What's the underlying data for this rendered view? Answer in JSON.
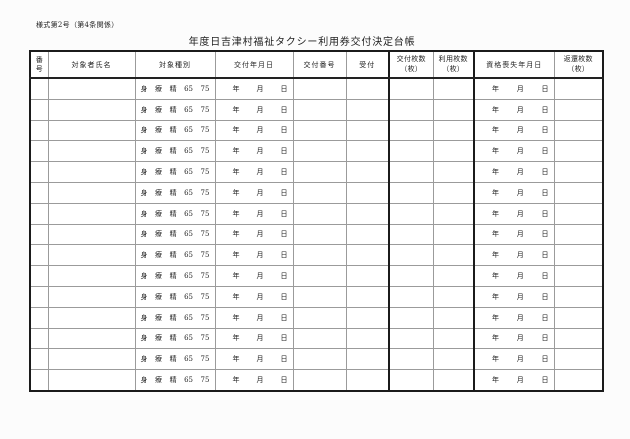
{
  "page": {
    "form_number": "様式第2号（第4条関係）",
    "title": "年度日吉津村福祉タクシー利用券交付決定台帳"
  },
  "ledger": {
    "columns": [
      {
        "id": "number",
        "label": "番号"
      },
      {
        "id": "name",
        "label": "対象者氏名"
      },
      {
        "id": "category",
        "label": "対象種別"
      },
      {
        "id": "issue_date",
        "label": "交付年月日"
      },
      {
        "id": "issue_number",
        "label": "交付番号"
      },
      {
        "id": "reception",
        "label": "受付"
      },
      {
        "id": "issued_count",
        "label": "交付枚数",
        "label2": "（枚）"
      },
      {
        "id": "used_count",
        "label": "利用枚数",
        "label2": "（枚）"
      },
      {
        "id": "loss_date",
        "label": "資格喪失年月日"
      },
      {
        "id": "returned_count",
        "label": "返還枚数",
        "label2": "（枚）"
      }
    ],
    "row_count": 15,
    "row_template": {
      "category_options": [
        "身",
        "療",
        "精",
        "65",
        "75"
      ],
      "date_placeholder": [
        "年",
        "月",
        "日"
      ]
    }
  }
}
